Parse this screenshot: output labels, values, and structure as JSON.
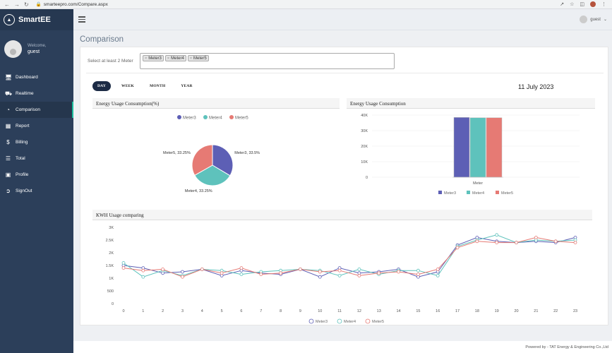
{
  "browser": {
    "url": "smarteepro.com/Compare.aspx"
  },
  "app": {
    "name": "SmartEE"
  },
  "user": {
    "welcome": "Welcome,",
    "name": "guest",
    "top_name": "guest"
  },
  "sidebar": {
    "items": [
      {
        "label": "Dashboard",
        "icon": "monitor-icon"
      },
      {
        "label": "Realtime",
        "icon": "car-icon"
      },
      {
        "label": "Comparison",
        "icon": "pie-icon"
      },
      {
        "label": "Report",
        "icon": "table-icon"
      },
      {
        "label": "Billing",
        "icon": "dollar-icon"
      },
      {
        "label": "Total",
        "icon": "list-icon"
      },
      {
        "label": "Profile",
        "icon": "id-card-icon"
      },
      {
        "label": "SignOut",
        "icon": "signout-icon"
      }
    ],
    "active_index": 2
  },
  "page": {
    "title": "Comparison",
    "selector_label": "Select at least 2 Meter",
    "selected_meters": [
      "Meter3",
      "Meter4",
      "Meter5"
    ],
    "periods": [
      "DAY",
      "WEEK",
      "MONTH",
      "YEAR"
    ],
    "active_period": "DAY",
    "date": "11 July 2023"
  },
  "colors": {
    "meter3": "#5d5fb5",
    "meter4": "#5ec2bc",
    "meter5": "#e67a74",
    "sidebar": "#2c3f5a",
    "accent": "#1abc9c"
  },
  "cards": {
    "pie_title": "Energy Usage Consumption(%)",
    "bar_title": "Energy Usage Consumption",
    "line_title": "KWH Usage comparing"
  },
  "footer": {
    "text": "Powered by - TAT Energy & Engineering Co.,Ltd"
  },
  "chart_data": [
    {
      "type": "pie",
      "title": "Energy Usage Consumption(%)",
      "legend": [
        "Meter3",
        "Meter4",
        "Meter5"
      ],
      "legend_position": "top",
      "slices": [
        {
          "name": "Meter3",
          "value": 33.5,
          "label": "Meter3, 33.5%"
        },
        {
          "name": "Meter4",
          "value": 33.25,
          "label": "Meter4, 33.25%"
        },
        {
          "name": "Meter5",
          "value": 33.25,
          "label": "Meter5, 33.25%"
        }
      ]
    },
    {
      "type": "bar",
      "title": "Energy Usage Consumption",
      "categories": [
        "Meter"
      ],
      "series": [
        {
          "name": "Meter3",
          "values": [
            38500
          ]
        },
        {
          "name": "Meter4",
          "values": [
            38300
          ]
        },
        {
          "name": "Meter5",
          "values": [
            38300
          ]
        }
      ],
      "ylim": [
        0,
        40000
      ],
      "yticks": [
        "40K",
        "30K",
        "20K",
        "10K",
        "0"
      ],
      "legend_position": "bottom",
      "grid": true
    },
    {
      "type": "line",
      "title": "KWH Usage comparing",
      "x": [
        0,
        1,
        2,
        3,
        4,
        5,
        6,
        7,
        8,
        9,
        10,
        11,
        12,
        13,
        14,
        15,
        16,
        17,
        18,
        19,
        20,
        21,
        22,
        23
      ],
      "series": [
        {
          "name": "Meter3",
          "values": [
            1500,
            1400,
            1200,
            1250,
            1350,
            1100,
            1300,
            1200,
            1150,
            1350,
            1050,
            1400,
            1200,
            1250,
            1350,
            1050,
            1250,
            2300,
            2600,
            2450,
            2400,
            2450,
            2400,
            2600
          ]
        },
        {
          "name": "Meter4",
          "values": [
            1600,
            1050,
            1300,
            1100,
            1350,
            1300,
            1150,
            1250,
            1300,
            1350,
            1300,
            1100,
            1350,
            1150,
            1300,
            1300,
            1100,
            2250,
            2500,
            2700,
            2400,
            2500,
            2450,
            2500
          ]
        },
        {
          "name": "Meter5",
          "values": [
            1400,
            1300,
            1350,
            1050,
            1350,
            1200,
            1400,
            1150,
            1200,
            1350,
            1250,
            1300,
            1100,
            1200,
            1250,
            1150,
            1350,
            2200,
            2450,
            2400,
            2400,
            2600,
            2450,
            2400
          ]
        }
      ],
      "ylim": [
        0,
        3000
      ],
      "yticks": [
        "3K",
        "2.5K",
        "2K",
        "1.5K",
        "1K",
        "500",
        "0"
      ],
      "legend_position": "bottom",
      "grid": false
    }
  ]
}
